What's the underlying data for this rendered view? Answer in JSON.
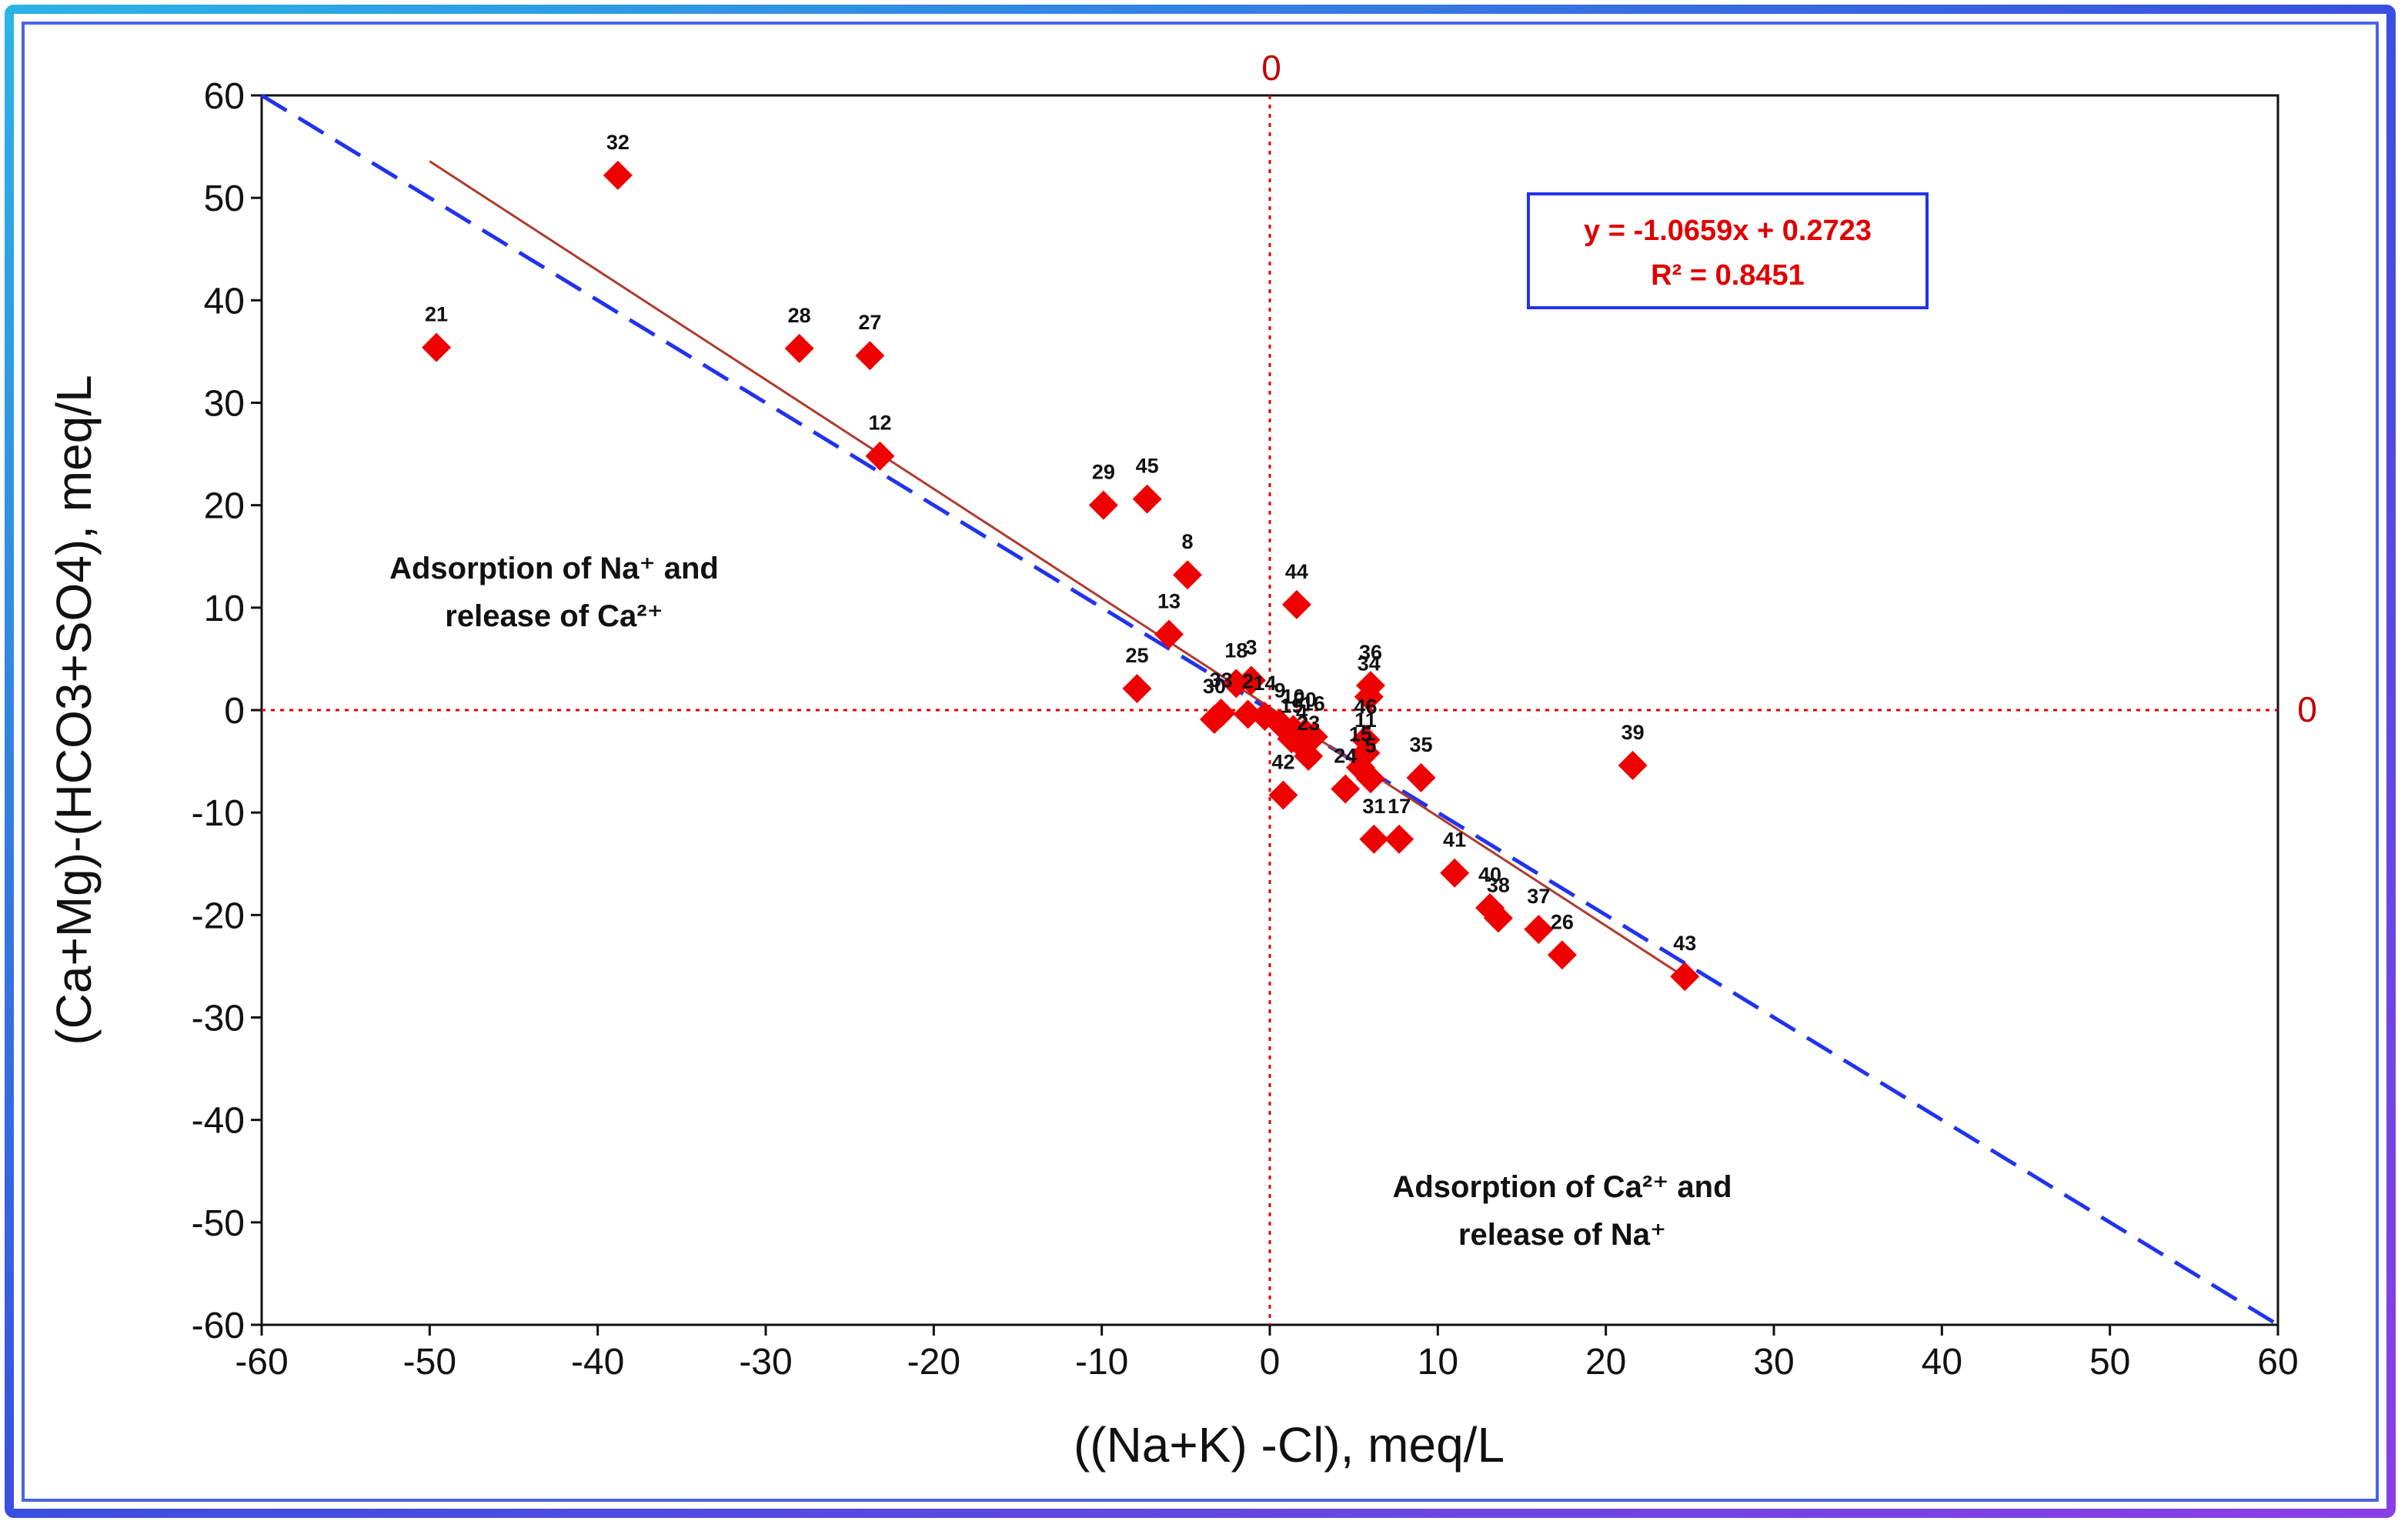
{
  "chart_data": {
    "type": "scatter",
    "xlabel": "((Na+K) -Cl), meq/L",
    "ylabel": "(Ca+Mg)-(HCO3+SO4), meq/L",
    "xlim": [
      -60,
      60
    ],
    "ylim": [
      -60,
      60
    ],
    "x_ticks": [
      -60,
      -50,
      -40,
      -30,
      -20,
      -10,
      0,
      10,
      20,
      30,
      40,
      50,
      60
    ],
    "y_ticks": [
      60,
      50,
      40,
      30,
      20,
      10,
      0,
      -10,
      -20,
      -30,
      -40,
      -50,
      -60
    ],
    "zero_line_labels": {
      "vertical": "0",
      "horizontal": "0"
    },
    "equation_box": {
      "equation": "y = -1.0659x + 0.2723",
      "r2": "R² = 0.8451"
    },
    "regions": {
      "upper_left": {
        "line1": "Adsorption of Na⁺ and",
        "line2": "release of Ca²⁺"
      },
      "lower_right": {
        "line1": "Adsorption of Ca²⁺ and",
        "line2": "release of Na⁺"
      }
    },
    "reference_line": {
      "style": "dashed",
      "color": "#2233ee",
      "from": [
        -60,
        60
      ],
      "to": [
        60,
        -60
      ]
    },
    "trend_line": {
      "color": "#b03a2e",
      "slope": -1.0659,
      "intercept": 0.2723,
      "x_range": [
        -50,
        25
      ]
    },
    "marker_color": "#ee0000",
    "points": [
      {
        "id": "32",
        "x": -38.8,
        "y": 52.2
      },
      {
        "id": "21",
        "x": -49.6,
        "y": 35.4
      },
      {
        "id": "28",
        "x": -28.0,
        "y": 35.3
      },
      {
        "id": "27",
        "x": -23.8,
        "y": 34.6
      },
      {
        "id": "12",
        "x": -23.2,
        "y": 24.8
      },
      {
        "id": "29",
        "x": -9.9,
        "y": 20.0
      },
      {
        "id": "45",
        "x": -7.3,
        "y": 20.6
      },
      {
        "id": "8",
        "x": -4.9,
        "y": 13.2
      },
      {
        "id": "13",
        "x": -6.0,
        "y": 7.4
      },
      {
        "id": "44",
        "x": 1.6,
        "y": 10.3
      },
      {
        "id": "25",
        "x": -7.9,
        "y": 2.1
      },
      {
        "id": "18",
        "x": -2.0,
        "y": 2.6
      },
      {
        "id": "3",
        "x": -1.1,
        "y": 2.9
      },
      {
        "id": "30",
        "x": -3.3,
        "y": -0.9
      },
      {
        "id": "33",
        "x": -2.9,
        "y": -0.3
      },
      {
        "id": "2",
        "x": -1.3,
        "y": -0.4
      },
      {
        "id": "14",
        "x": -0.3,
        "y": -0.6
      },
      {
        "id": "9",
        "x": 0.6,
        "y": -1.3
      },
      {
        "id": "10",
        "x": 1.4,
        "y": -1.9
      },
      {
        "id": "20",
        "x": 2.1,
        "y": -2.2
      },
      {
        "id": "16",
        "x": 2.6,
        "y": -2.6
      },
      {
        "id": "19",
        "x": 1.3,
        "y": -2.8
      },
      {
        "id": "4",
        "x": 1.9,
        "y": -3.4
      },
      {
        "id": "36",
        "x": 6.0,
        "y": 2.4
      },
      {
        "id": "34",
        "x": 5.9,
        "y": 1.3
      },
      {
        "id": "46",
        "x": 5.7,
        "y": -2.9
      },
      {
        "id": "11",
        "x": 5.7,
        "y": -4.2
      },
      {
        "id": "24",
        "x": 4.5,
        "y": -7.7
      },
      {
        "id": "15",
        "x": 5.4,
        "y": -5.6
      },
      {
        "id": "5",
        "x": 6.0,
        "y": -6.7
      },
      {
        "id": "42",
        "x": 0.8,
        "y": -8.3
      },
      {
        "id": "23",
        "x": 2.3,
        "y": -4.5
      },
      {
        "id": "35",
        "x": 9.0,
        "y": -6.6
      },
      {
        "id": "31",
        "x": 6.2,
        "y": -12.6
      },
      {
        "id": "17",
        "x": 7.7,
        "y": -12.6
      },
      {
        "id": "39",
        "x": 21.6,
        "y": -5.4
      },
      {
        "id": "41",
        "x": 11.0,
        "y": -15.9
      },
      {
        "id": "40",
        "x": 13.1,
        "y": -19.3
      },
      {
        "id": "38",
        "x": 13.6,
        "y": -20.3
      },
      {
        "id": "37",
        "x": 16.0,
        "y": -21.4
      },
      {
        "id": "26",
        "x": 17.4,
        "y": -23.9
      },
      {
        "id": "43",
        "x": 24.7,
        "y": -26.0
      }
    ]
  }
}
